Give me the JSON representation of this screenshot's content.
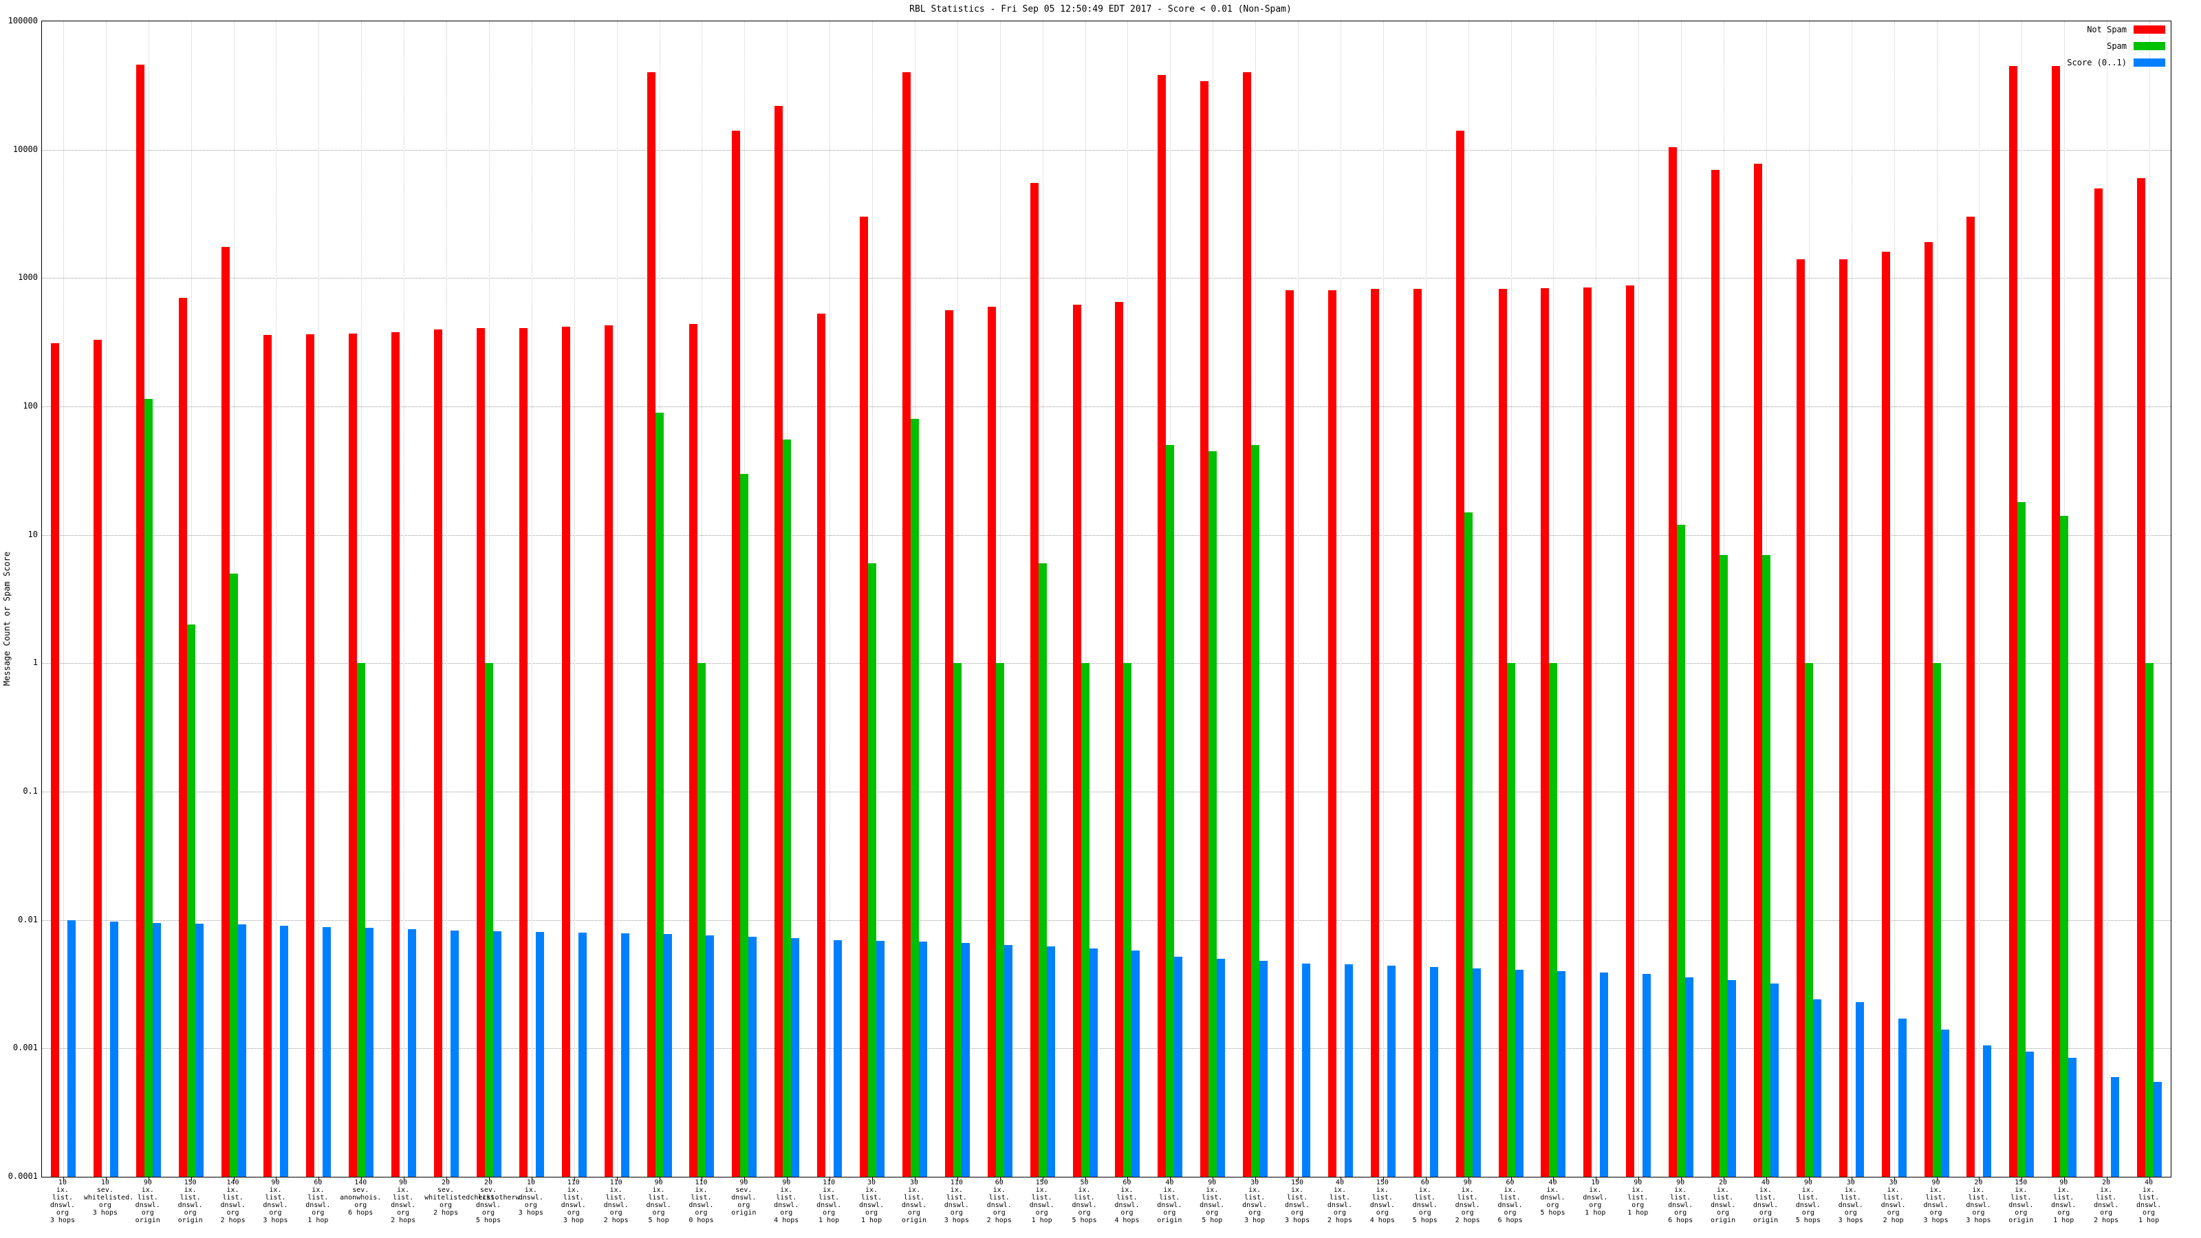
{
  "title": "RBL Statistics - Fri Sep 05 12:50:49 EDT 2017 - Score < 0.01 (Non-Spam)",
  "y_axis_label": "Message Count or Spam Score",
  "legend": [
    {
      "label": "Not Spam",
      "color": "#ff0000"
    },
    {
      "label": "Spam",
      "color": "#00c000"
    },
    {
      "label": "Score (0..1)",
      "color": "#0080ff"
    }
  ],
  "chart_data": {
    "type": "bar",
    "y_scale": "log",
    "ylim": [
      0.0001,
      100000
    ],
    "grid": true,
    "legend_position": "top-right",
    "y_ticks": [
      "100000",
      "10000",
      "1000",
      "100",
      "10",
      "1",
      "0.1",
      "0.01",
      "0.001",
      "0.0001"
    ],
    "categories": [
      "10\nix.\nlist.\ndnswl.\norg\n3 hops",
      "10\nsev.\nwhitelisted.\norg\n3 hops",
      "90\nix.\nlist.\ndnswl.\norg\norigin",
      "150\nix.\nlist.\ndnswl.\norg\norigin",
      "140\nix.\nlist.\ndnswl.\norg\n2 hops",
      "90\nix.\nlist.\ndnswl.\norg\n3 hops",
      "60\nix.\nlist.\ndnswl.\norg\n1 hop",
      "140\nsev.\nanonwhois.\norg\n6 hops",
      "90\nix.\nlist.\ndnswl.\norg\n2 hops",
      "20\nsev.\nwhitelistedchecksotherw.\norg\n2 hops",
      "20\nsev.\nlist.\ndnswl.\norg\n5 hops",
      "10\nix.\ndnswl.\norg\n3 hops",
      "110\nix.\nlist.\ndnswl.\norg\n3 hop",
      "110\nix.\nlist.\ndnswl.\norg\n2 hops",
      "90\nix.\nlist.\ndnswl.\norg\n5 hop",
      "110\nix.\nlist.\ndnswl.\norg\n0 hops",
      "90\nsev.\ndnswl.\norg\norigin",
      "90\nix.\nlist.\ndnswl.\norg\n4 hops",
      "110\nix.\nlist.\ndnswl.\norg\n1 hop",
      "30\nix.\nlist.\ndnswl.\norg\n1 hop",
      "30\nix.\nlist.\ndnswl.\norg\norigin",
      "110\nix.\nlist.\ndnswl.\norg\n3 hops",
      "60\nix.\nlist.\ndnswl.\norg\n2 hops",
      "150\nix.\nlist.\ndnswl.\norg\n1 hop",
      "50\nix.\nlist.\ndnswl.\norg\n5 hops",
      "60\nix.\nlist.\ndnswl.\norg\n4 hops",
      "40\nix.\nlist.\ndnswl.\norg\norigin",
      "90\nix.\nlist.\ndnswl.\norg\n5 hop",
      "30\nix.\nlist.\ndnswl.\norg\n3 hop",
      "150\nix.\nlist.\ndnswl.\norg\n3 hops",
      "40\nix.\nlist.\ndnswl.\norg\n2 hops",
      "150\nix.\nlist.\ndnswl.\norg\n4 hops",
      "60\nix.\nlist.\ndnswl.\norg\n5 hops",
      "90\nix.\nlist.\ndnswl.\norg\n2 hops",
      "60\nix.\nlist.\ndnswl.\norg\n6 hops",
      "40\nix.\ndnswl.\norg\n5 hops",
      "10\nix.\ndnswl.\norg\n1 hop",
      "90\nix.\nlist.\norg\n1 hop",
      "90\nix.\nlist.\ndnswl.\norg\n6 hops",
      "20\nix.\nlist.\ndnswl.\norg\norigin",
      "40\nix.\nlist.\ndnswl.\norg\norigin",
      "90\nix.\nlist.\ndnswl.\norg\n5 hops",
      "30\nix.\nlist.\ndnswl.\norg\n3 hops",
      "30\nix.\nlist.\ndnswl.\norg\n2 hop",
      "90\nix.\nlist.\ndnswl.\norg\n3 hops",
      "20\nix.\nlist.\ndnswl.\norg\n3 hops",
      "150\nix.\nlist.\ndnswl.\norg\norigin",
      "90\nix.\nlist.\ndnswl.\norg\n1 hop",
      "20\nix.\nlist.\ndnswl.\norg\n2 hops",
      "40\nix.\nlist.\ndnswl.\norg\n1 hop"
    ],
    "series": [
      {
        "name": "Not Spam",
        "key": "not-spam",
        "color": "#ff0000",
        "values": [
          310,
          330,
          46000,
          700,
          1750,
          360,
          365,
          370,
          380,
          400,
          410,
          410,
          420,
          430,
          40000,
          440,
          14000,
          22000,
          530,
          3000,
          40000,
          560,
          600,
          5500,
          620,
          650,
          38000,
          34000,
          40000,
          800,
          800,
          820,
          820,
          14000,
          820,
          830,
          850,
          880,
          10500,
          7000,
          7800,
          1400,
          1400,
          1600,
          1900,
          3000,
          45000,
          45000,
          5000,
          6000
        ]
      },
      {
        "name": "Spam",
        "key": "spam",
        "color": "#00c000",
        "values": [
          0,
          0,
          115,
          2,
          5,
          0,
          0,
          1,
          0,
          0,
          1,
          0,
          0,
          0,
          90,
          1,
          30,
          55,
          0,
          6,
          80,
          1,
          1,
          6,
          1,
          1,
          50,
          45,
          50,
          0,
          0,
          0,
          0,
          15,
          1,
          1,
          0,
          0,
          12,
          7,
          7,
          1,
          0,
          0,
          1,
          0,
          18,
          14,
          0,
          1
        ]
      },
      {
        "name": "Score (0..1)",
        "key": "score",
        "color": "#0080ff",
        "values": [
          0.0099,
          0.0097,
          0.0095,
          0.0094,
          0.0092,
          0.009,
          0.0088,
          0.0087,
          0.0085,
          0.0083,
          0.0082,
          0.0081,
          0.008,
          0.0079,
          0.0078,
          0.0076,
          0.0074,
          0.0072,
          0.007,
          0.0069,
          0.0068,
          0.0066,
          0.0064,
          0.0062,
          0.006,
          0.0058,
          0.0052,
          0.005,
          0.0048,
          0.0046,
          0.0045,
          0.0044,
          0.0043,
          0.0042,
          0.0041,
          0.004,
          0.0039,
          0.0038,
          0.0036,
          0.0034,
          0.0032,
          0.0024,
          0.0023,
          0.0017,
          0.0014,
          0.00105,
          0.00095,
          0.00085,
          0.0006,
          0.00055
        ]
      }
    ]
  }
}
